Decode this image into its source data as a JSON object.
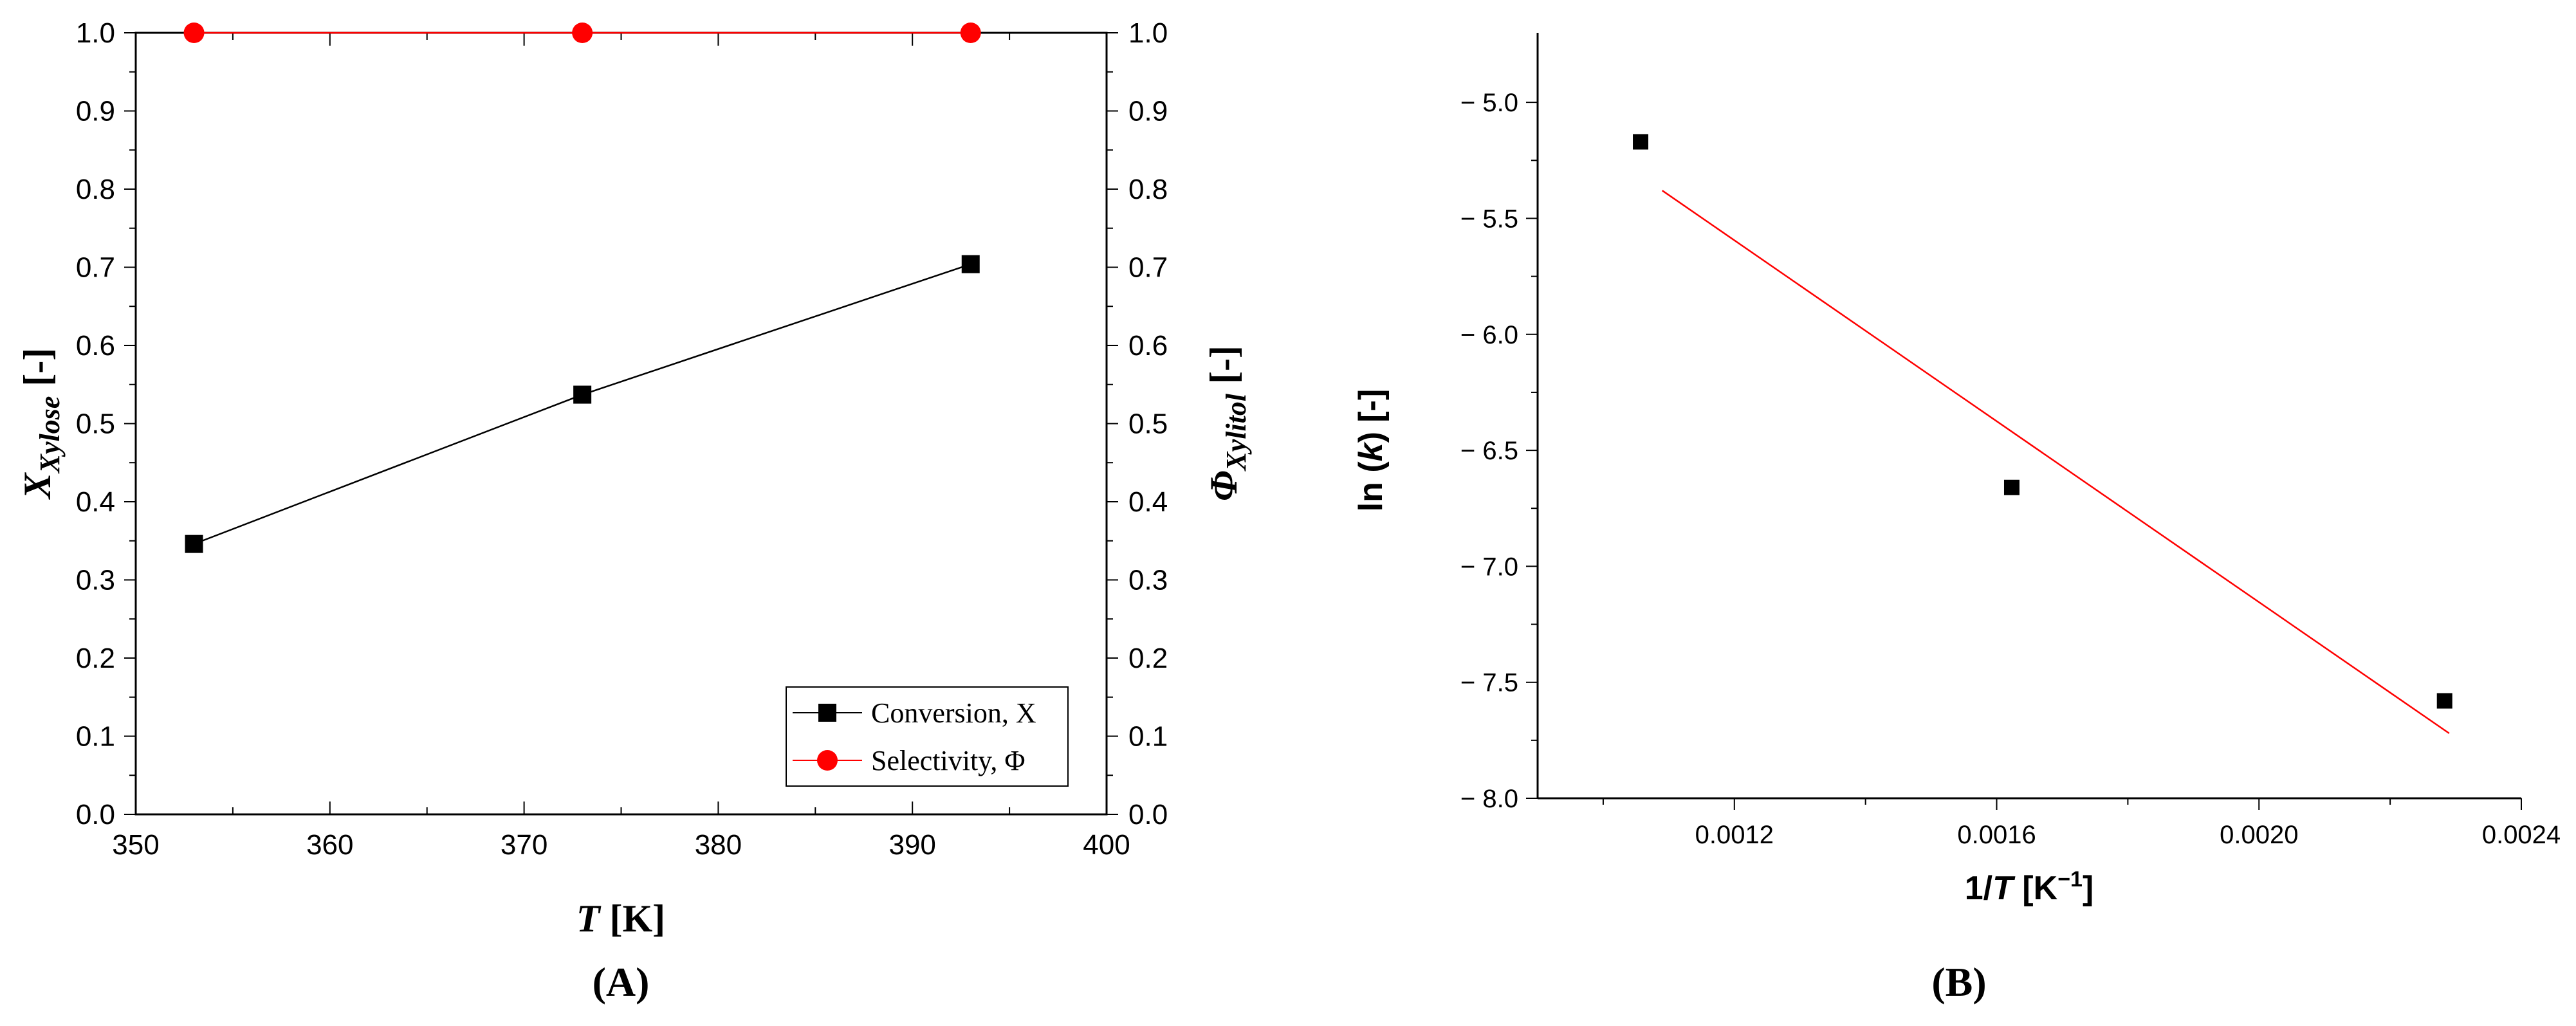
{
  "chart_data": [
    {
      "type": "line",
      "panel_label": "(A)",
      "xlabel": "T [K]",
      "ylabel_left": "X_Xylose [-]",
      "ylabel_right": "Φ_Xylitol [-]",
      "xlim": [
        350,
        400
      ],
      "ylim": [
        0,
        1
      ],
      "x_ticks": [
        "350",
        "360",
        "370",
        "380",
        "390",
        "400"
      ],
      "y_ticks": [
        "0.0",
        "0.1",
        "0.2",
        "0.3",
        "0.4",
        "0.5",
        "0.6",
        "0.7",
        "0.8",
        "0.9",
        "1.0"
      ],
      "legend_placement": "bottom-right",
      "series": [
        {
          "name": "Conversion, X",
          "color": "#000000",
          "marker": "square",
          "x": [
            353,
            373,
            393
          ],
          "y": [
            0.346,
            0.537,
            0.704
          ]
        },
        {
          "name": "Selectivity, Φ",
          "color": "#ff0000",
          "marker": "circle",
          "x": [
            353,
            373,
            393
          ],
          "y": [
            1.0,
            1.0,
            1.0
          ]
        }
      ]
    },
    {
      "type": "scatter",
      "panel_label": "(B)",
      "xlabel": "1/T [K⁻¹]",
      "ylabel": "ln (k) [-]",
      "xlim": [
        0.0009,
        0.0024
      ],
      "ylim": [
        -8.0,
        -4.7
      ],
      "x_ticks": [
        "0.0012",
        "0.0016",
        "0.0020",
        "0.0024"
      ],
      "y_ticks": [
        "-5.0",
        "-5.5",
        "-6.0",
        "-6.5",
        "-7.0",
        "-7.5",
        "-8.0"
      ],
      "points": {
        "color": "#000000",
        "marker": "square",
        "x": [
          0.001057,
          0.001623,
          0.002283
        ],
        "y": [
          -5.17,
          -6.66,
          -7.58
        ]
      },
      "fit_line": {
        "color": "#ff0000",
        "x": [
          0.00109,
          0.00229
        ],
        "y": [
          -5.38,
          -7.72
        ]
      }
    }
  ]
}
